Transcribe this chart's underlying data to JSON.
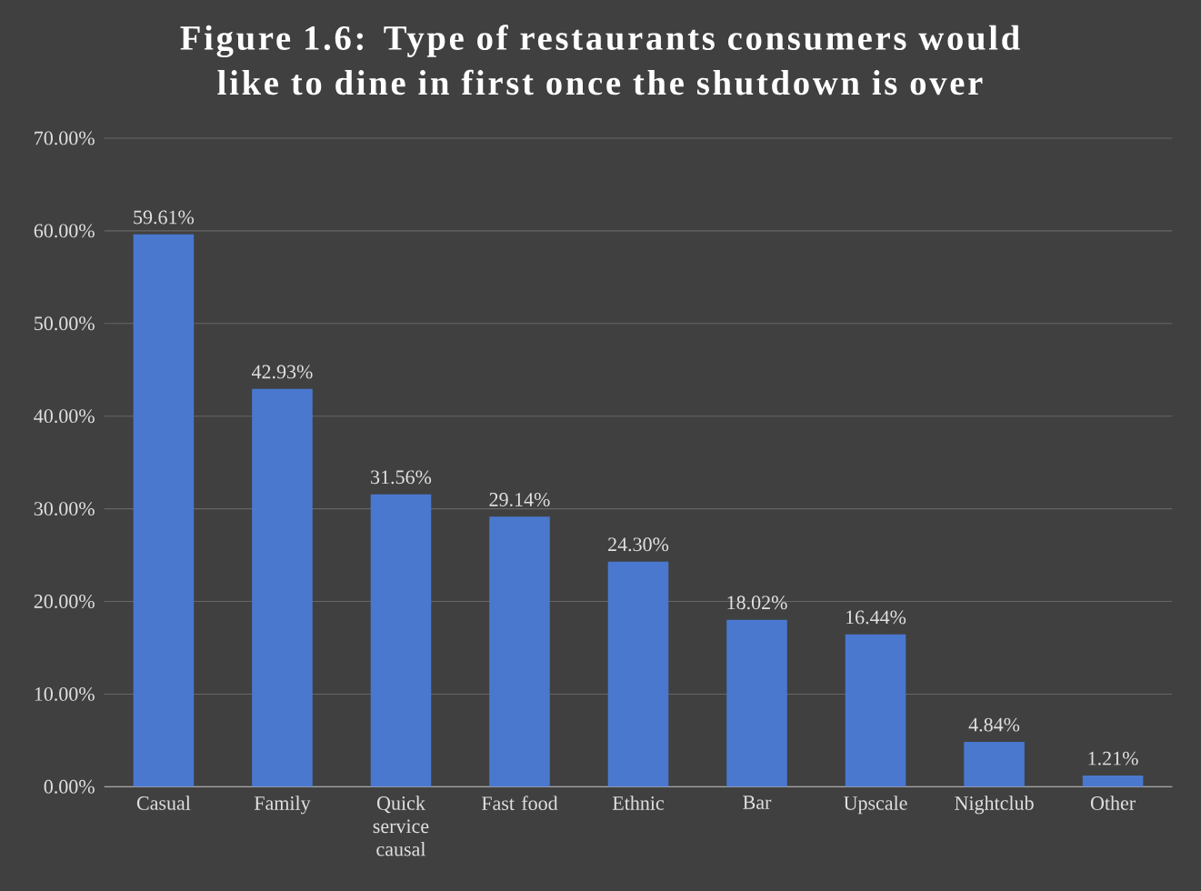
{
  "chart_data": {
    "type": "bar",
    "title": "Figure 1.6: Type of restaurants consumers would like to dine in first once the shutdown is over",
    "categories": [
      "Casual",
      "Family",
      "Quick service causal",
      "Fast food",
      "Ethnic",
      "Bar",
      "Upscale",
      "Nightclub",
      "Other"
    ],
    "values": [
      59.61,
      42.93,
      31.56,
      29.14,
      24.3,
      18.02,
      16.44,
      4.84,
      1.21
    ],
    "value_labels": [
      "59.61%",
      "42.93%",
      "31.56%",
      "29.14%",
      "24.30%",
      "18.02%",
      "16.44%",
      "4.84%",
      "1.21%"
    ],
    "color": "#4a78cf",
    "ylim": [
      0,
      70
    ],
    "yticks": [
      {
        "value": 0,
        "label": "0.00%"
      },
      {
        "value": 10,
        "label": "10.00%"
      },
      {
        "value": 20,
        "label": "20.00%"
      },
      {
        "value": 30,
        "label": "30.00%"
      },
      {
        "value": 40,
        "label": "40.00%"
      },
      {
        "value": 50,
        "label": "50.00%"
      },
      {
        "value": 60,
        "label": "60.00%"
      },
      {
        "value": 70,
        "label": "70.00%"
      }
    ],
    "grid": "y"
  }
}
